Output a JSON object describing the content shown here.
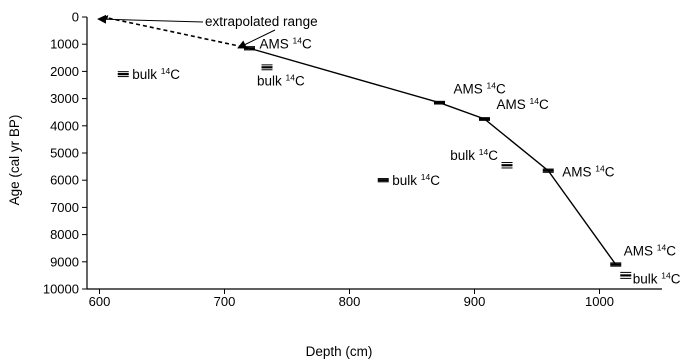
{
  "chart_data": {
    "type": "scatter",
    "title": "",
    "xlabel": "Depth (cm)",
    "ylabel": "Age (cal yr BP)",
    "xlim": [
      590,
      1050
    ],
    "ylim": [
      0,
      10000
    ],
    "y_inverted": true,
    "x_ticks": [
      600,
      700,
      800,
      900,
      1000
    ],
    "y_ticks": [
      0,
      1000,
      2000,
      3000,
      4000,
      5000,
      6000,
      7000,
      8000,
      9000,
      10000
    ],
    "grid": false,
    "legend": "none",
    "age_model_line": {
      "style": "solid",
      "x": [
        720,
        872,
        908,
        959,
        1013
      ],
      "y": [
        1150,
        3150,
        3750,
        5650,
        9100
      ]
    },
    "extrapolated_line": {
      "style": "dashed",
      "label": "extrapolated range",
      "x": [
        603,
        720
      ],
      "y": [
        0,
        1150
      ]
    },
    "series": [
      {
        "name": "AMS ¹⁴C",
        "x": [
          720,
          872,
          908,
          959,
          1013
        ],
        "y": [
          1150,
          3150,
          3750,
          5650,
          9100
        ],
        "err": [
          60,
          50,
          50,
          60,
          60
        ],
        "labels": [
          "AMS",
          "AMS",
          "AMS",
          "AMS",
          "AMS"
        ]
      },
      {
        "name": "bulk ¹⁴C",
        "x": [
          619,
          734,
          827,
          926,
          1021
        ],
        "y": [
          2100,
          1850,
          6000,
          5450,
          9500
        ],
        "err": [
          90,
          90,
          60,
          100,
          110
        ],
        "labels": [
          "bulk",
          "bulk",
          "bulk",
          "bulk",
          "bulk"
        ]
      }
    ],
    "isotope_label": "14C",
    "isotope_superscript": "14",
    "isotope_element": "C"
  }
}
